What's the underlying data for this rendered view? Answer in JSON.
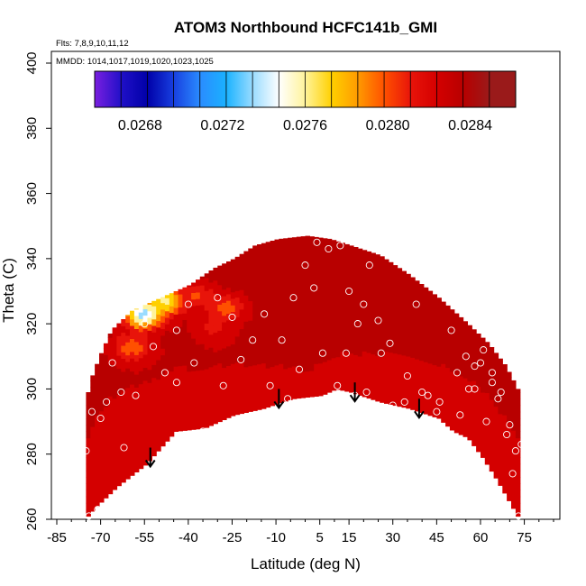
{
  "chart_data": {
    "type": "heatmap",
    "title": "ATOM3 Northbound HCFC141b_GMI",
    "subtitle_flights": "Flts: 7,8,9,10,11,12",
    "subtitle_dates": "MMDD: 1014,1017,1019,1020,1023,1025",
    "xlabel": "Latitude (deg N)",
    "ylabel": "Theta (C)",
    "xlim": [
      -85,
      85
    ],
    "ylim": [
      260,
      400
    ],
    "xticks": [
      -85,
      -70,
      -55,
      -40,
      -25,
      -10,
      5,
      15,
      30,
      45,
      60,
      75
    ],
    "yticks": [
      260,
      280,
      300,
      320,
      340,
      360,
      380,
      400
    ],
    "colorbar": {
      "range": [
        0.02658,
        0.02862
      ],
      "ticks": [
        "0.0268",
        "0.0272",
        "0.0276",
        "0.0280",
        "0.0284"
      ],
      "tick_values": [
        0.0268,
        0.0272,
        0.0276,
        0.028,
        0.0284
      ],
      "colors": [
        "#7a1fe0",
        "#2010c8",
        "#0000a8",
        "#1840e0",
        "#2a8cff",
        "#1ab2ff",
        "#9adcff",
        "#ffffff",
        "#fff39a",
        "#ffd000",
        "#ff9a00",
        "#ff5000",
        "#e8140a",
        "#d40000",
        "#b80000",
        "#9a1a1a"
      ]
    },
    "boundary": [
      [
        -75,
        261
      ],
      [
        -72,
        264
      ],
      [
        -65,
        270
      ],
      [
        -55,
        277
      ],
      [
        -45,
        287
      ],
      [
        -35,
        288
      ],
      [
        -25,
        292
      ],
      [
        -15,
        294
      ],
      [
        -5,
        297
      ],
      [
        5,
        298
      ],
      [
        10,
        300
      ],
      [
        15,
        299
      ],
      [
        25,
        296
      ],
      [
        35,
        294
      ],
      [
        45,
        291
      ],
      [
        50,
        287
      ],
      [
        55,
        285
      ],
      [
        60,
        279
      ],
      [
        65,
        272
      ],
      [
        72,
        261
      ]
    ],
    "top_boundary": [
      [
        -76,
        295
      ],
      [
        -74,
        303
      ],
      [
        -71,
        310
      ],
      [
        -67,
        318
      ],
      [
        -60,
        324
      ],
      [
        -50,
        328
      ],
      [
        -40,
        332
      ],
      [
        -32,
        337
      ],
      [
        -25,
        340
      ],
      [
        -18,
        344
      ],
      [
        -10,
        346
      ],
      [
        0,
        347
      ],
      [
        8,
        346
      ],
      [
        15,
        344
      ],
      [
        25,
        341
      ],
      [
        35,
        335
      ],
      [
        45,
        328
      ],
      [
        55,
        320
      ],
      [
        62,
        314
      ],
      [
        68,
        307
      ],
      [
        72,
        300
      ],
      [
        75,
        286
      ]
    ],
    "anomalies": [
      {
        "lon": -56,
        "theta": 322,
        "value": 0.02735
      },
      {
        "lon": -48,
        "theta": 326,
        "value": 0.02765
      },
      {
        "lon": -60,
        "theta": 312,
        "value": 0.028
      },
      {
        "lon": -38,
        "theta": 328,
        "value": 0.0281
      },
      {
        "lon": -28,
        "theta": 324,
        "value": 0.028
      },
      {
        "lon": -32,
        "theta": 318,
        "value": 0.0282
      }
    ],
    "points": [
      [
        -74,
        261
      ],
      [
        -71,
        263
      ],
      [
        -75,
        281
      ],
      [
        -73,
        293
      ],
      [
        -70,
        291
      ],
      [
        -66,
        308
      ],
      [
        -63,
        299
      ],
      [
        -62,
        282
      ],
      [
        -55,
        320
      ],
      [
        -52,
        313
      ],
      [
        -48,
        305
      ],
      [
        -44,
        318
      ],
      [
        -40,
        326
      ],
      [
        -38,
        308
      ],
      [
        -35,
        287
      ],
      [
        -30,
        328
      ],
      [
        -25,
        322
      ],
      [
        -22,
        309
      ],
      [
        -18,
        315
      ],
      [
        -14,
        323
      ],
      [
        -8,
        315
      ],
      [
        -4,
        328
      ],
      [
        0,
        338
      ],
      [
        3,
        331
      ],
      [
        8,
        343
      ],
      [
        12,
        344
      ],
      [
        15,
        330
      ],
      [
        20,
        326
      ],
      [
        25,
        321
      ],
      [
        29,
        314
      ],
      [
        -6,
        297
      ],
      [
        11,
        301
      ],
      [
        14,
        311
      ],
      [
        17,
        298
      ],
      [
        21,
        299
      ],
      [
        30,
        295
      ],
      [
        35,
        304
      ],
      [
        38,
        326
      ],
      [
        42,
        298
      ],
      [
        45,
        293
      ],
      [
        49,
        286
      ],
      [
        53,
        292
      ],
      [
        56,
        300
      ],
      [
        58,
        307
      ],
      [
        61,
        312
      ],
      [
        64,
        302
      ],
      [
        66,
        297
      ],
      [
        69,
        286
      ],
      [
        72,
        281
      ],
      [
        74,
        283
      ],
      [
        71,
        274
      ],
      [
        73,
        261
      ],
      [
        22,
        338
      ],
      [
        33,
        342
      ],
      [
        -20,
        345
      ],
      [
        4,
        345
      ],
      [
        44,
        333
      ],
      [
        50,
        318
      ],
      [
        55,
        310
      ],
      [
        60,
        308
      ],
      [
        64,
        305
      ],
      [
        67,
        299
      ],
      [
        70,
        289
      ],
      [
        62,
        290
      ],
      [
        58,
        300
      ],
      [
        52,
        305
      ],
      [
        40,
        299
      ],
      [
        46,
        296
      ],
      [
        34,
        296
      ],
      [
        26,
        311
      ],
      [
        18,
        320
      ],
      [
        6,
        311
      ],
      [
        -2,
        306
      ],
      [
        -12,
        301
      ],
      [
        -28,
        301
      ],
      [
        -44,
        302
      ],
      [
        -58,
        298
      ],
      [
        -68,
        296
      ]
    ],
    "arrows": [
      [
        -53,
        282
      ],
      [
        -9,
        300
      ],
      [
        17,
        302
      ],
      [
        39,
        297
      ]
    ]
  }
}
